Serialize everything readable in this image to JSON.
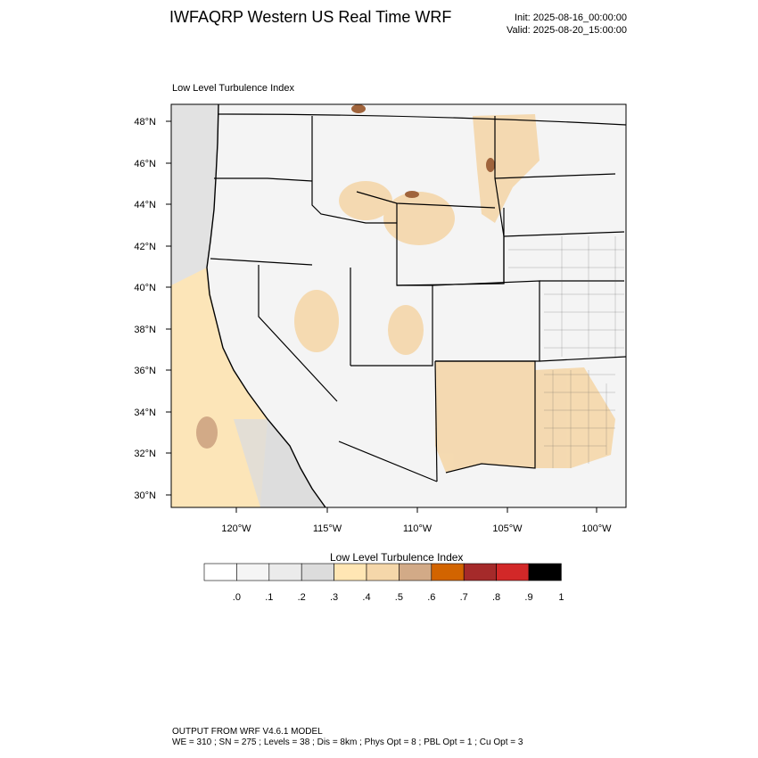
{
  "header": {
    "title": "IWFAQRP Western US Real Time WRF",
    "init": "Init: 2025-08-16_00:00:00",
    "valid": "Valid: 2025-08-20_15:00:00"
  },
  "map": {
    "variable_label": "Low Level Turbulence Index",
    "lat_ticks": [
      "48°N",
      "46°N",
      "44°N",
      "42°N",
      "40°N",
      "38°N",
      "36°N",
      "34°N",
      "32°N",
      "30°N"
    ],
    "lon_ticks": [
      "120°W",
      "115°W",
      "110°W",
      "105°W",
      "100°W"
    ],
    "lat_range": [
      29.4,
      48.9
    ],
    "lon_range": [
      -123.6,
      -98.4
    ],
    "projection": "lambert-conformal"
  },
  "colorbar": {
    "title": "Low Level Turbulence Index",
    "labels": [
      ".0",
      ".1",
      ".2",
      ".3",
      ".4",
      ".5",
      ".6",
      ".7",
      ".8",
      ".9",
      "1"
    ],
    "colors": [
      "#ffffff",
      "#f5f5f5",
      "#ebebeb",
      "#dcdcdc",
      "#ffe6b4",
      "#f5d7aa",
      "#d2aa87",
      "#d26400",
      "#a52a2a",
      "#d22828",
      "#000000"
    ]
  },
  "footer": {
    "line1": "OUTPUT FROM WRF V4.6.1 MODEL",
    "line2": "WE = 310 ; SN = 275 ; Levels = 38 ; Dis = 8km ; Phys Opt = 8 ; PBL Opt = 1 ; Cu Opt = 3"
  }
}
